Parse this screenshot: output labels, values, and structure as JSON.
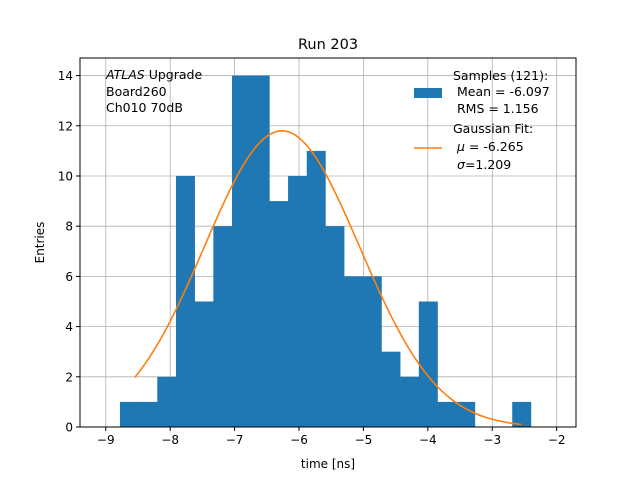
{
  "chart_data": {
    "type": "bar",
    "title": "Run 203",
    "xlabel": "time [ns]",
    "ylabel": "Entries",
    "xlim": [
      -9.4,
      -1.7
    ],
    "ylim": [
      0,
      14.7
    ],
    "x_ticks": [
      -9,
      -8,
      -7,
      -6,
      -5,
      -4,
      -3,
      -2
    ],
    "x_tick_labels": [
      "−9",
      "−8",
      "−7",
      "−6",
      "−5",
      "−4",
      "−3",
      "−2"
    ],
    "y_ticks": [
      0,
      2,
      4,
      6,
      8,
      10,
      12,
      14
    ],
    "y_tick_labels": [
      "0",
      "2",
      "4",
      "6",
      "8",
      "10",
      "12",
      "14"
    ],
    "grid": true,
    "annotation_lines": [
      "ATLAS Upgrade",
      "Board260",
      "Ch010 70dB"
    ],
    "annotation_italic_word": "ATLAS",
    "annotation_rest": " Upgrade",
    "histogram": {
      "color": "#1f77b4",
      "bin_edges": [
        -8.78,
        -8.49,
        -8.2,
        -7.91,
        -7.62,
        -7.33,
        -7.04,
        -6.75,
        -6.46,
        -6.17,
        -5.88,
        -5.59,
        -5.3,
        -5.01,
        -4.72,
        -4.43,
        -4.14,
        -3.85,
        -3.56,
        -3.27,
        -2.98,
        -2.69,
        -2.4,
        -2.11
      ],
      "counts": [
        1,
        1,
        2,
        10,
        5,
        8,
        14,
        14,
        9,
        10,
        11,
        8,
        6,
        6,
        3,
        2,
        5,
        1,
        1,
        0,
        0,
        1,
        0
      ],
      "legend_lines": [
        "Samples (121):",
        " Mean = -6.097",
        " RMS = 1.156"
      ]
    },
    "fit": {
      "color": "#ff7f0e",
      "mu": -6.265,
      "sigma": 1.209,
      "amplitude": 11.8,
      "x_range": [
        -8.55,
        -2.55
      ],
      "legend_line1": "Gaussian Fit:",
      "legend_mu_value": " = -6.265",
      "legend_sigma_value": "=1.209"
    }
  }
}
